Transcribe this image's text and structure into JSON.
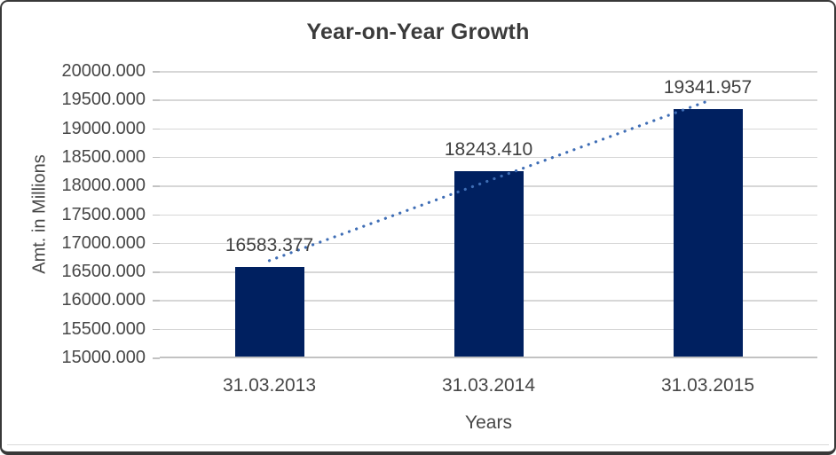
{
  "chart_data": {
    "type": "bar",
    "title": "Year-on-Year Growth",
    "xlabel": "Years",
    "ylabel": "Amt. in Millions",
    "categories": [
      "31.03.2013",
      "31.03.2014",
      "31.03.2015"
    ],
    "values": [
      16583.377,
      18243.41,
      19341.957
    ],
    "data_labels": [
      "16583.377",
      "18243.410",
      "19341.957"
    ],
    "y_ticks": [
      "20000.000",
      "19500.000",
      "19000.000",
      "18500.000",
      "18000.000",
      "17500.000",
      "17000.000",
      "16500.000",
      "16000.000",
      "15500.000",
      "15000.000"
    ],
    "ylim": [
      15000,
      20000
    ],
    "grid": true,
    "legend": "none",
    "bar_color": "#002060",
    "gridline_color": "#d7d7d7",
    "axis_line_color": "#c2c2c2",
    "text_color": "#474747",
    "trendline": {
      "type": "linear",
      "style": "dotted",
      "color": "#3e6db5",
      "start_value": 16690,
      "end_value": 19475
    }
  }
}
